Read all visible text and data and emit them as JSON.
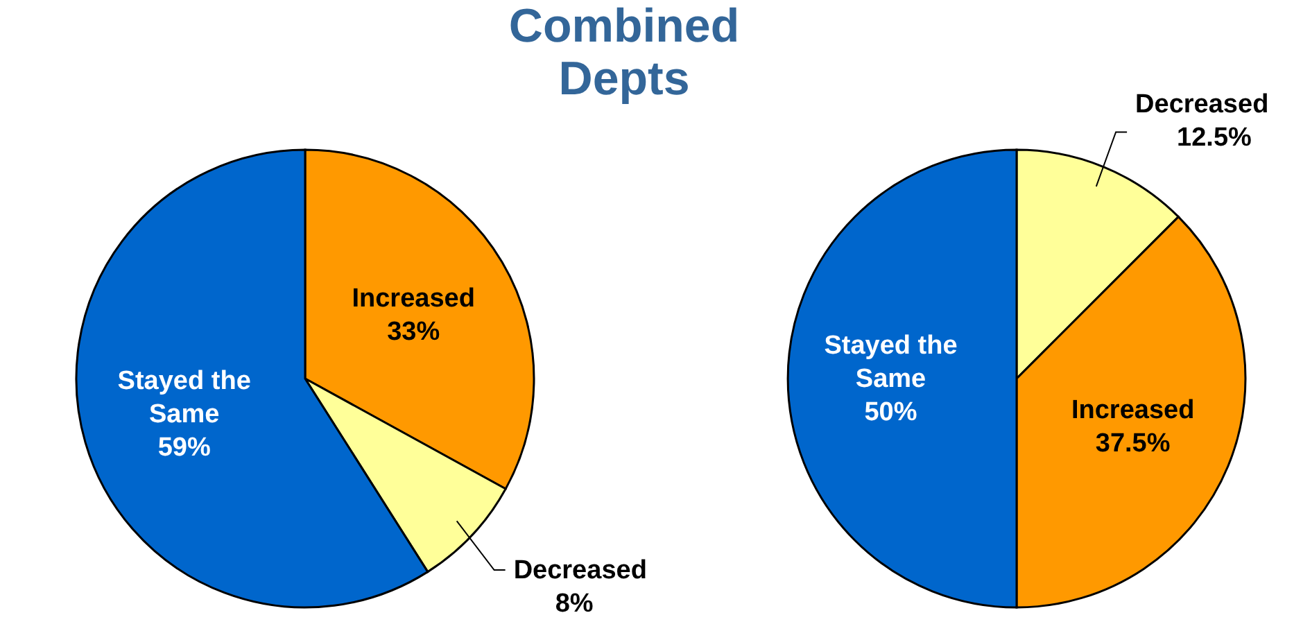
{
  "chart_data": [
    {
      "type": "pie",
      "title": "Combined Depts",
      "categories": [
        "Increased",
        "Decreased",
        "Stayed the Same"
      ],
      "values": [
        33,
        8,
        59
      ],
      "value_labels": [
        "33%",
        "8%",
        "59%"
      ],
      "colors": [
        "#ff9900",
        "#ffff99",
        "#0066cc"
      ]
    },
    {
      "type": "pie",
      "categories": [
        "Decreased",
        "Increased",
        "Stayed the Same"
      ],
      "values": [
        12.5,
        37.5,
        50
      ],
      "value_labels": [
        "12.5%",
        "37.5%",
        "50%"
      ],
      "colors": [
        "#ffff99",
        "#ff9900",
        "#0066cc"
      ]
    }
  ]
}
